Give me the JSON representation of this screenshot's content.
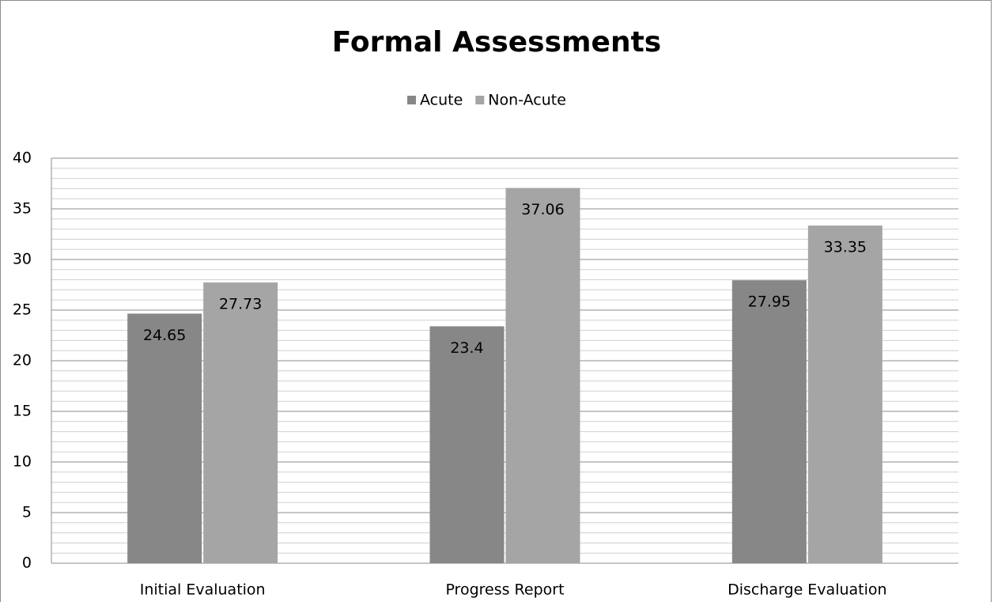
{
  "chart_data": {
    "type": "bar",
    "title": "Formal Assessments",
    "categories": [
      "Initial Evaluation",
      "Progress Report",
      "Discharge Evaluation"
    ],
    "series": [
      {
        "name": "Acute",
        "color": "#878787",
        "values": [
          24.65,
          23.4,
          27.95
        ]
      },
      {
        "name": "Non-Acute",
        "color": "#a5a5a5",
        "values": [
          27.73,
          37.06,
          33.35
        ]
      }
    ],
    "ylim": [
      0,
      40
    ],
    "yticks": [
      0,
      5,
      10,
      15,
      20,
      25,
      30,
      35,
      40
    ],
    "grid": true,
    "minor_grid": true,
    "legend": "top",
    "data_labels": true
  }
}
